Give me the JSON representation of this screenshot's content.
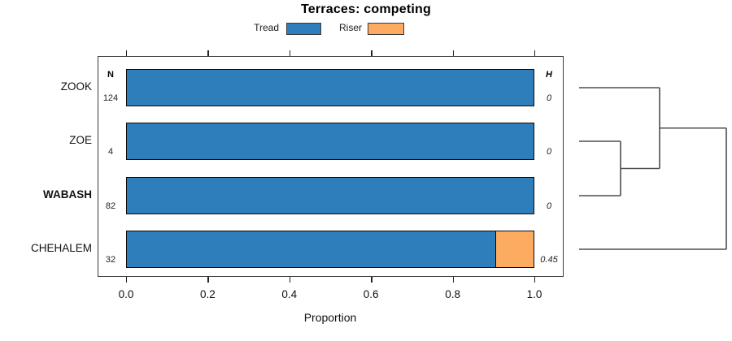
{
  "chart_data": {
    "type": "bar",
    "orientation": "horizontal-stacked",
    "title": "Terraces: competing",
    "xlabel": "Proportion",
    "xlim": [
      0,
      1
    ],
    "xticks": [
      "0.0",
      "0.2",
      "0.4",
      "0.6",
      "0.8",
      "1.0"
    ],
    "legend": [
      {
        "label": "Tread",
        "color": "#2e7ebc"
      },
      {
        "label": "Riser",
        "color": "#fcab60"
      }
    ],
    "categories": [
      "ZOOK",
      "ZOE",
      "WABASH",
      "CHEHALEM"
    ],
    "emphasized_category": "WABASH",
    "series": [
      {
        "name": "Tread",
        "values": [
          1,
          1,
          1,
          0.906
        ]
      },
      {
        "name": "Riser",
        "values": [
          0,
          0,
          0,
          0.094
        ]
      }
    ],
    "n_header": "N",
    "n_values": [
      "124",
      "4",
      "82",
      "32"
    ],
    "h_header": "H",
    "h_values": [
      "0",
      "0",
      "0",
      "0.45"
    ],
    "dendrogram": {
      "leaf_order": [
        "ZOOK",
        "ZOE",
        "WABASH",
        "CHEHALEM"
      ],
      "leaf_start_x": 712,
      "merges": [
        {
          "id": "m0",
          "x": 763,
          "a": "ZOE",
          "b": "WABASH"
        },
        {
          "id": "m1",
          "x": 811,
          "a": "ZOOK",
          "b": "m0"
        },
        {
          "id": "m2",
          "x": 893,
          "a": "m1",
          "b": "CHEHALEM"
        }
      ],
      "line_color": "#4d4d4d"
    }
  }
}
